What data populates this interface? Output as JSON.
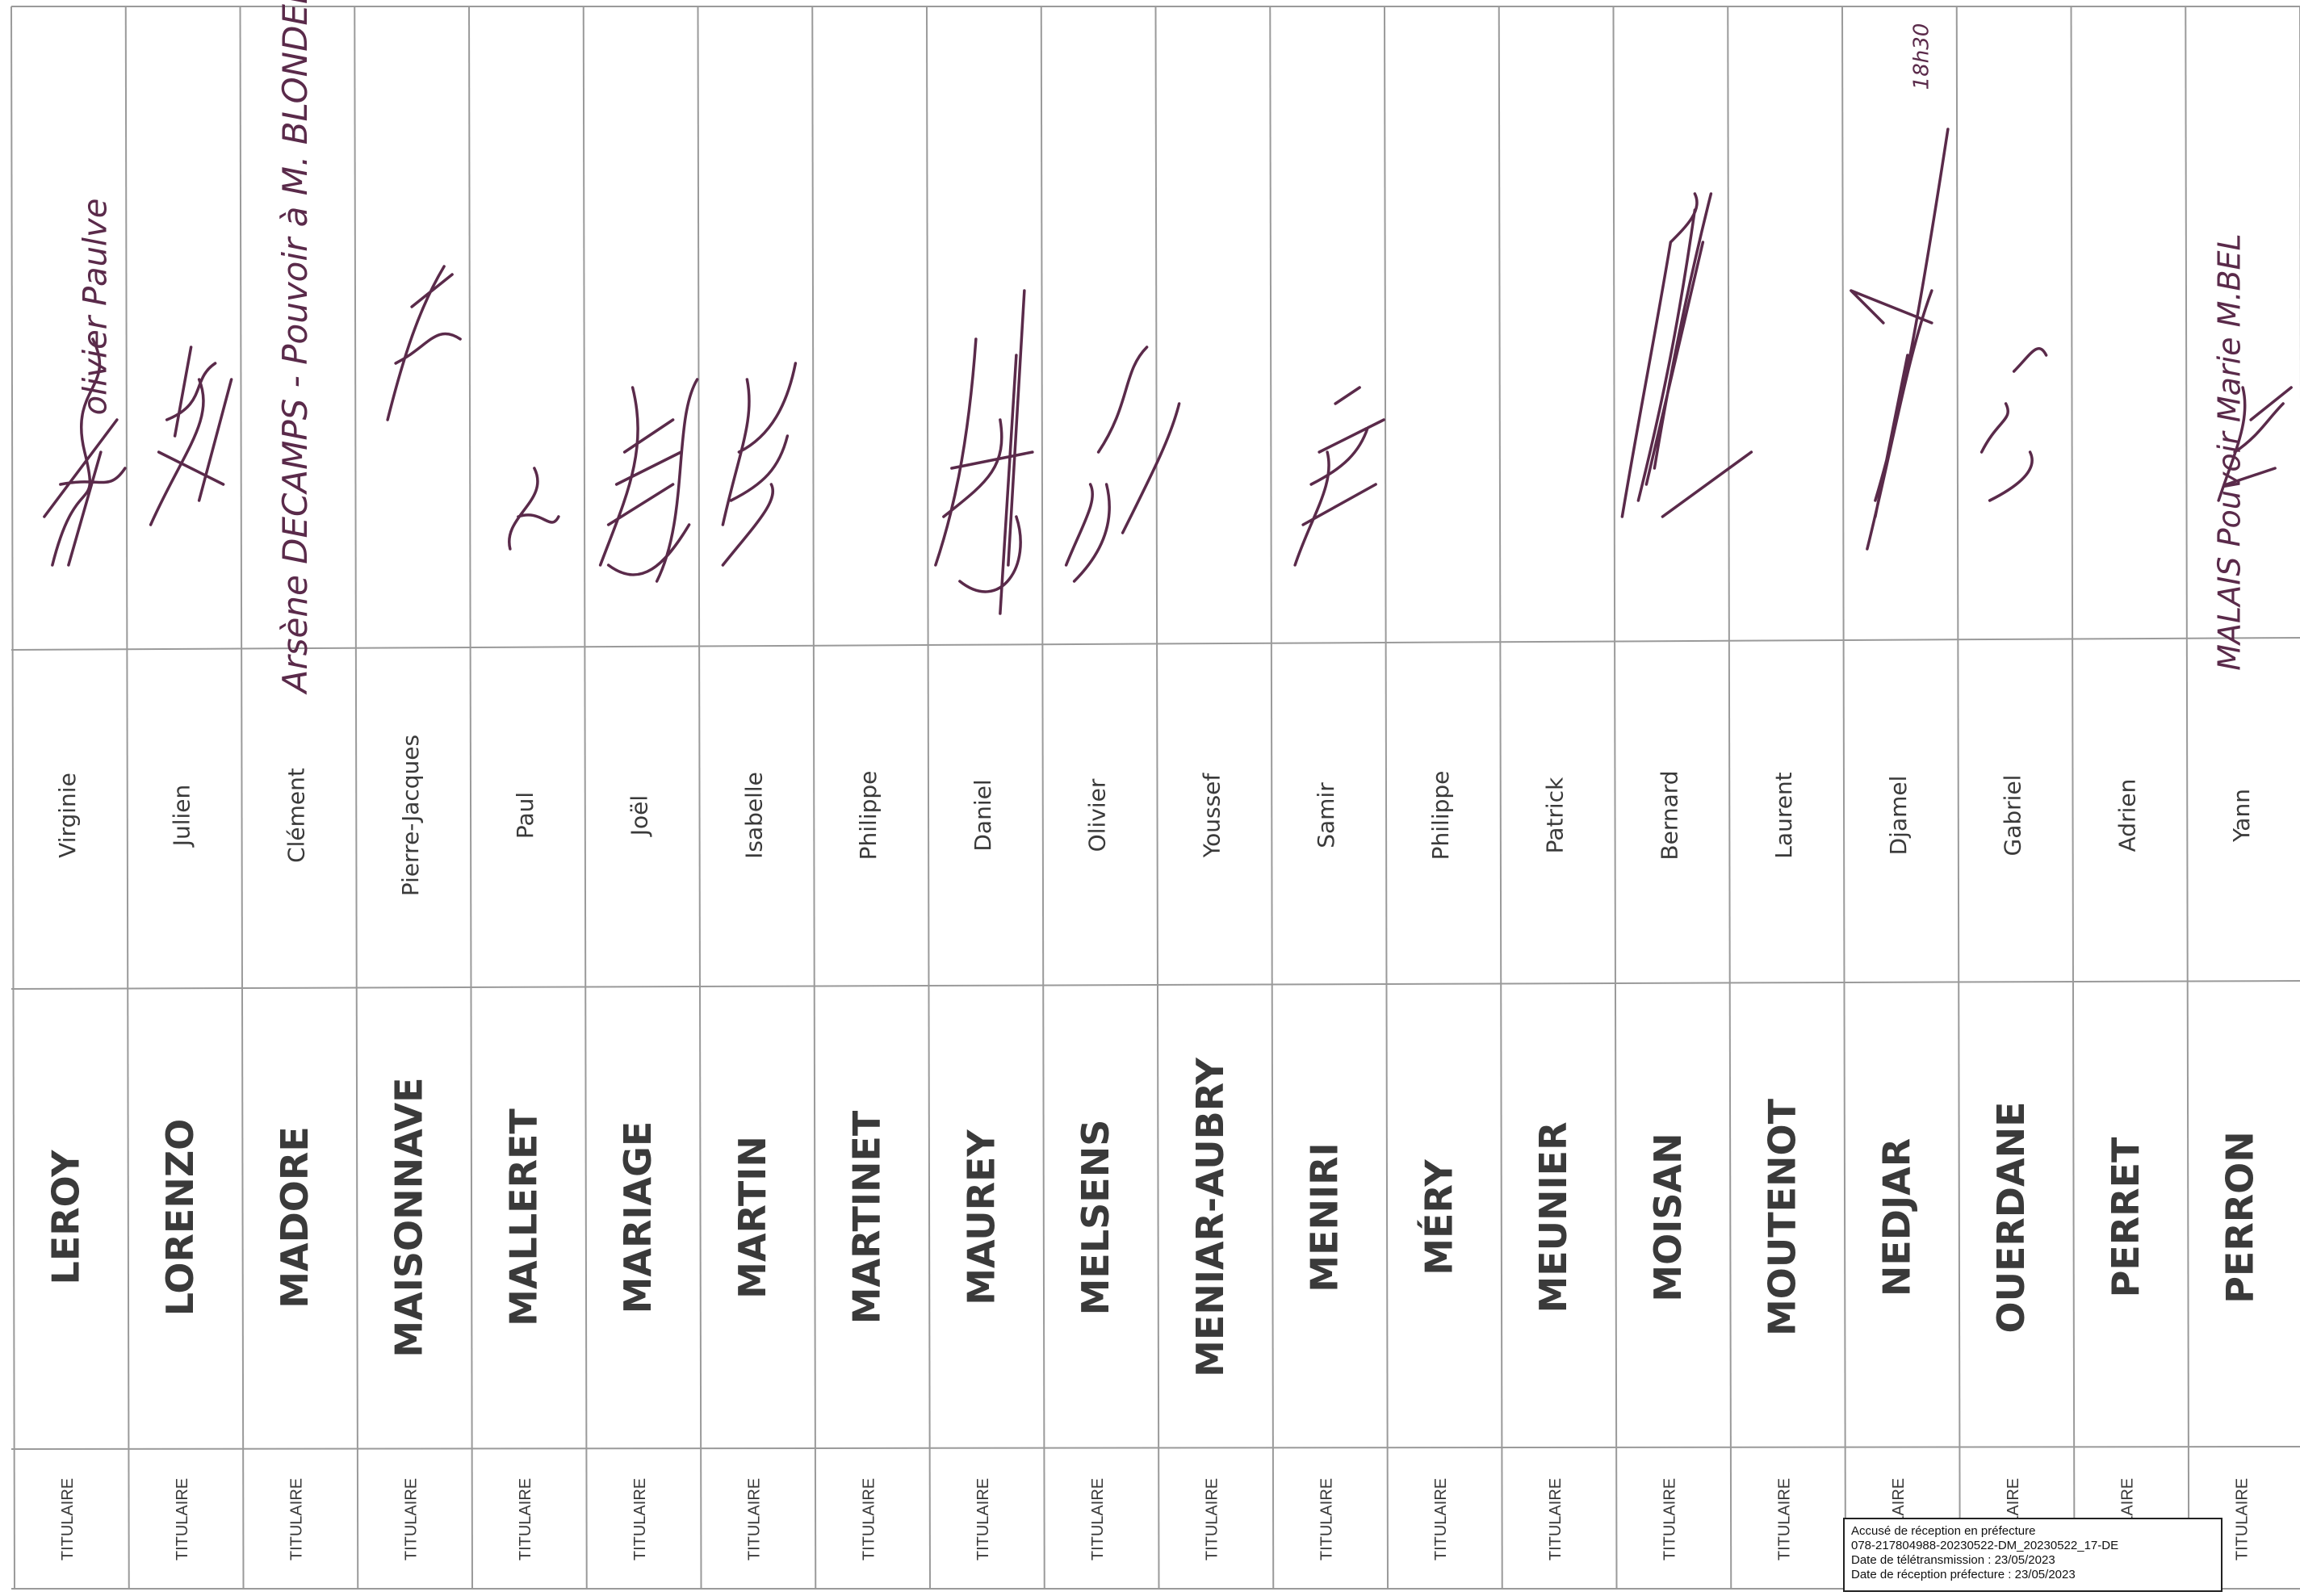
{
  "register": {
    "rows": [
      {
        "status": "TITULAIRE",
        "surname": "LEROY",
        "first_name": "Virginie",
        "signature_text": ""
      },
      {
        "status": "TITULAIRE",
        "surname": "LORENZO",
        "first_name": "Julien",
        "signature_text": ""
      },
      {
        "status": "TITULAIRE",
        "surname": "MADORE",
        "first_name": "Clément",
        "signature_text": ""
      },
      {
        "status": "TITULAIRE",
        "surname": "MAISONNAVE",
        "first_name": "Pierre-Jacques",
        "signature_text": ""
      },
      {
        "status": "TITULAIRE",
        "surname": "MALLERET",
        "first_name": "Paul",
        "signature_text": ""
      },
      {
        "status": "TITULAIRE",
        "surname": "MARIAGE",
        "first_name": "Joël",
        "signature_text": ""
      },
      {
        "status": "TITULAIRE",
        "surname": "MARTIN",
        "first_name": "Isabelle",
        "signature_text": ""
      },
      {
        "status": "TITULAIRE",
        "surname": "MARTINET",
        "first_name": "Philippe",
        "signature_text": ""
      },
      {
        "status": "TITULAIRE",
        "surname": "MAUREY",
        "first_name": "Daniel",
        "signature_text": ""
      },
      {
        "status": "TITULAIRE",
        "surname": "MELSENS",
        "first_name": "Olivier",
        "signature_text": ""
      },
      {
        "status": "TITULAIRE",
        "surname": "MENIAR-AUBRY",
        "first_name": "Youssef",
        "signature_text": ""
      },
      {
        "status": "TITULAIRE",
        "surname": "MENIRI",
        "first_name": "Samir",
        "signature_text": ""
      },
      {
        "status": "TITULAIRE",
        "surname": "MÉRY",
        "first_name": "Philippe",
        "signature_text": ""
      },
      {
        "status": "TITULAIRE",
        "surname": "MEUNIER",
        "first_name": "Patrick",
        "signature_text": ""
      },
      {
        "status": "TITULAIRE",
        "surname": "MOISAN",
        "first_name": "Bernard",
        "signature_text": ""
      },
      {
        "status": "TITULAIRE",
        "surname": "MOUTENOT",
        "first_name": "Laurent",
        "signature_text": ""
      },
      {
        "status": "TITULAIRE",
        "surname": "NEDJAR",
        "first_name": "Djamel",
        "signature_text": ""
      },
      {
        "status": "TITULAIRE",
        "surname": "OUERDANE",
        "first_name": "Gabriel",
        "signature_text": ""
      },
      {
        "status": "TITULAIRE",
        "surname": "PERRET",
        "first_name": "Adrien",
        "signature_text": ""
      },
      {
        "status": "TITULAIRE",
        "surname": "PERRON",
        "first_name": "Yann",
        "signature_text": ""
      }
    ],
    "margin_notes": [
      "olivier Paulve",
      "Arsène DECAMPS - Pouvoir à M. BLONDEL",
      "18h30",
      "MALAIS Pouvoir Marie M.BEL"
    ]
  },
  "stamp": {
    "line1": "Accusé de réception en préfecture",
    "line2": "078-217804988-20230522-DM_20230522_17-DE",
    "line3": "Date de télétransmission : 23/05/2023",
    "line4": "Date de réception préfecture : 23/05/2023"
  },
  "colors": {
    "ink": "#5a2a4a",
    "grid": "#9a9a9a",
    "text": "#3a3a3a"
  }
}
